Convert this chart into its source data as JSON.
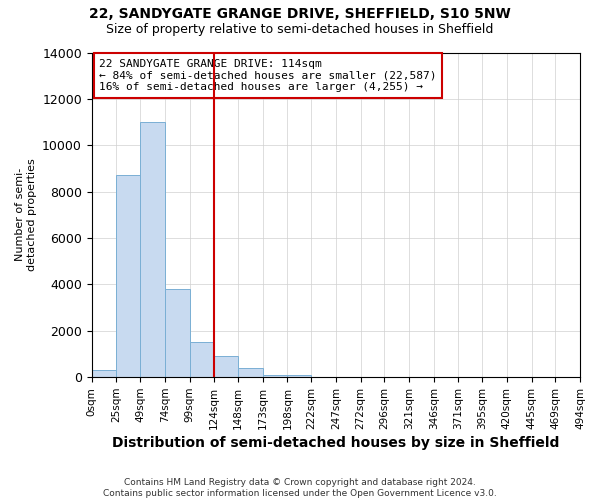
{
  "title1": "22, SANDYGATE GRANGE DRIVE, SHEFFIELD, S10 5NW",
  "title2": "Size of property relative to semi-detached houses in Sheffield",
  "xlabel": "Distribution of semi-detached houses by size in Sheffield",
  "ylabel": "Number of semi-\ndetached properties",
  "annotation_line1": "22 SANDYGATE GRANGE DRIVE: 114sqm",
  "annotation_line2": "← 84% of semi-detached houses are smaller (22,587)",
  "annotation_line3": "16% of semi-detached houses are larger (4,255) →",
  "footer": "Contains HM Land Registry data © Crown copyright and database right 2024.\nContains public sector information licensed under the Open Government Licence v3.0.",
  "bin_edges": [
    0,
    25,
    49,
    74,
    99,
    124,
    148,
    173,
    198,
    222,
    247,
    272,
    296,
    321,
    346,
    371,
    395,
    420,
    445,
    469,
    494
  ],
  "bin_labels": [
    "0sqm",
    "25sqm",
    "49sqm",
    "74sqm",
    "99sqm",
    "124sqm",
    "148sqm",
    "173sqm",
    "198sqm",
    "222sqm",
    "247sqm",
    "272sqm",
    "296sqm",
    "321sqm",
    "346sqm",
    "371sqm",
    "395sqm",
    "420sqm",
    "445sqm",
    "469sqm",
    "494sqm"
  ],
  "bar_heights": [
    300,
    8700,
    11000,
    3800,
    1500,
    900,
    400,
    100,
    100,
    0,
    0,
    0,
    0,
    0,
    0,
    0,
    0,
    0,
    0,
    0
  ],
  "bar_color": "#c8daf0",
  "bar_edgecolor": "#7aafd4",
  "vline_color": "#cc0000",
  "vline_x": 124,
  "ylim": [
    0,
    14000
  ],
  "annotation_box_color": "#cc0000",
  "background_color": "#ffffff",
  "grid_color": "#d0d0d0",
  "title1_fontsize": 10,
  "title2_fontsize": 9,
  "xlabel_fontsize": 10,
  "ylabel_fontsize": 8,
  "tick_fontsize": 7.5,
  "annotation_fontsize": 8,
  "footer_fontsize": 6.5
}
